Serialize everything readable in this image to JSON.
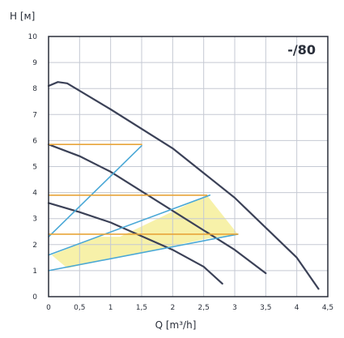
{
  "chart_data": {
    "type": "line",
    "title": "",
    "xlabel": "Q [m³/h]",
    "ylabel": "H [м]",
    "xlim": [
      0,
      4.5
    ],
    "ylim": [
      0,
      10
    ],
    "x_ticks": [
      "0",
      "0,5",
      "1",
      "1,5",
      "2",
      "2,5",
      "3",
      "3,5",
      "4",
      "4,5"
    ],
    "y_ticks": [
      "0",
      "1",
      "2",
      "3",
      "4",
      "5",
      "6",
      "7",
      "8",
      "9",
      "10"
    ],
    "grid": true,
    "series_label": "-/80",
    "series": [
      {
        "name": "speed-max",
        "points": [
          [
            0,
            8.1
          ],
          [
            0.15,
            8.25
          ],
          [
            0.3,
            8.2
          ],
          [
            1,
            7.2
          ],
          [
            2,
            5.7
          ],
          [
            3,
            3.8
          ],
          [
            4,
            1.5
          ],
          [
            4.35,
            0.3
          ]
        ],
        "color": "#3b4157"
      },
      {
        "name": "speed-mid",
        "points": [
          [
            0,
            5.85
          ],
          [
            0.5,
            5.4
          ],
          [
            1,
            4.8
          ],
          [
            2,
            3.3
          ],
          [
            3,
            1.8
          ],
          [
            3.5,
            0.9
          ]
        ],
        "color": "#3b4157"
      },
      {
        "name": "speed-min",
        "points": [
          [
            0,
            3.6
          ],
          [
            0.5,
            3.25
          ],
          [
            1,
            2.85
          ],
          [
            2,
            1.8
          ],
          [
            2.5,
            1.15
          ],
          [
            2.8,
            0.5
          ]
        ],
        "color": "#3b4157"
      },
      {
        "name": "control-line-1",
        "points": [
          [
            0,
            2.3
          ],
          [
            1.5,
            5.8
          ]
        ],
        "color": "#4aa8d6"
      },
      {
        "name": "control-line-2",
        "points": [
          [
            0,
            1.6
          ],
          [
            2.6,
            3.9
          ]
        ],
        "color": "#4aa8d6"
      },
      {
        "name": "control-line-3",
        "points": [
          [
            0,
            1.0
          ],
          [
            3.05,
            2.4
          ]
        ],
        "color": "#4aa8d6"
      },
      {
        "name": "constant-head-1",
        "points": [
          [
            0,
            5.85
          ],
          [
            1.5,
            5.85
          ]
        ],
        "color": "#e8a53a"
      },
      {
        "name": "constant-head-2",
        "points": [
          [
            0,
            3.9
          ],
          [
            2.55,
            3.9
          ]
        ],
        "color": "#e8a53a"
      },
      {
        "name": "constant-head-3",
        "points": [
          [
            0,
            2.4
          ],
          [
            3.05,
            2.4
          ]
        ],
        "color": "#e8a53a"
      }
    ],
    "regions": [
      {
        "name": "operating-zone",
        "points": [
          [
            1.15,
            2.3
          ],
          [
            2.55,
            3.9
          ],
          [
            3.05,
            2.4
          ],
          [
            2.6,
            2.25
          ],
          [
            0.3,
            1.1
          ],
          [
            0.05,
            1.6
          ],
          [
            0.8,
            2.3
          ]
        ],
        "color": "#f6ef9a"
      }
    ],
    "colors": {
      "axis": "#2a2f3a",
      "grid": "#c5c9d3",
      "curve": "#3b4157",
      "control": "#4aa8d6",
      "constant": "#e8a53a",
      "zone": "#f6ef9a"
    }
  }
}
